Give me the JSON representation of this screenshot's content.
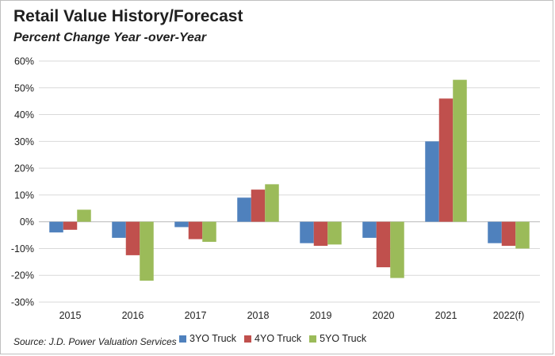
{
  "title": "Retail Value History/Forecast",
  "subtitle": "Percent Change Year -over-Year",
  "source": "Source: J.D. Power Valuation Services",
  "colors": {
    "3YO Truck": "#4f81bd",
    "4YO Truck": "#c0504d",
    "5YO Truck": "#9bbb59",
    "grid": "#d9d9d9",
    "axis": "#bfbfbf"
  },
  "chart_data": {
    "type": "bar",
    "title": "Retail Value History/Forecast",
    "subtitle": "Percent Change Year -over-Year",
    "xlabel": "",
    "ylabel": "",
    "ylim": [
      -30,
      60
    ],
    "yticks": [
      60,
      50,
      40,
      30,
      20,
      10,
      0,
      -10,
      -20,
      -30
    ],
    "ytick_labels": [
      "60%",
      "50%",
      "40%",
      "30%",
      "20%",
      "10%",
      "0%",
      "-10%",
      "-20%",
      "-30%"
    ],
    "grid": true,
    "legend_position": "bottom",
    "categories": [
      "2015",
      "2016",
      "2017",
      "2018",
      "2019",
      "2020",
      "2021",
      "2022(f)"
    ],
    "series": [
      {
        "name": "3YO Truck",
        "values": [
          -4,
          -6,
          -2,
          9,
          -8,
          -6,
          30,
          -8
        ]
      },
      {
        "name": "4YO Truck",
        "values": [
          -3,
          -12.5,
          -6.5,
          12,
          -9,
          -17,
          46,
          -9
        ]
      },
      {
        "name": "5YO Truck",
        "values": [
          4.5,
          -22,
          -7.5,
          14,
          -8.5,
          -21,
          53,
          -10
        ]
      }
    ]
  }
}
